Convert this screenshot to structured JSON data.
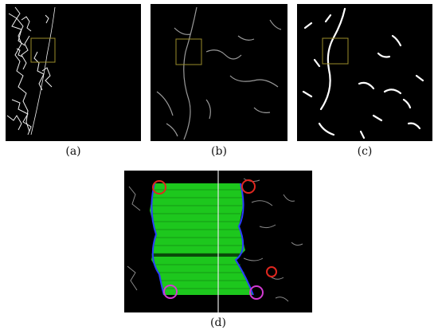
{
  "captions": {
    "a": "(a)",
    "b": "(b)",
    "c": "(c)",
    "d": "(d)"
  },
  "colors": {
    "background": "#000000",
    "roi_box": "#9a8c2a",
    "match_lines": "#1fd81f",
    "boundary": "#2a3cff",
    "circle_red": "#e0271f",
    "circle_magenta": "#d23ad2"
  },
  "panels": [
    {
      "id": "a",
      "description_role": "edge-map"
    },
    {
      "id": "b",
      "description_role": "gradient-map"
    },
    {
      "id": "c",
      "description_role": "line-features"
    },
    {
      "id": "d",
      "description_role": "feature-matching"
    }
  ],
  "markers": {
    "red_circle_count": 3,
    "magenta_circle_count": 2
  }
}
